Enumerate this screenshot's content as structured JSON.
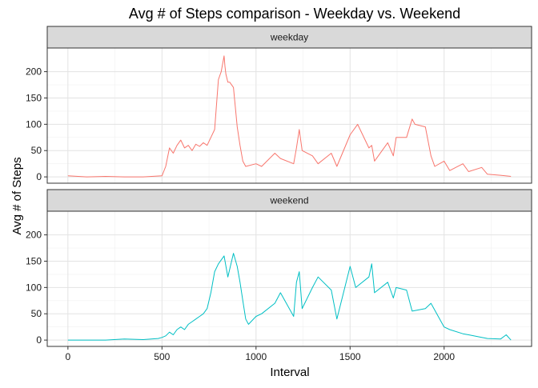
{
  "chart_data": {
    "type": "line",
    "title": "Avg # of Steps comparison - Weekday vs. Weekend",
    "xlabel": "Interval",
    "ylabel": "Avg # of Steps",
    "xlim": [
      -110,
      2465
    ],
    "ylim": [
      -12,
      245
    ],
    "x_ticks": [
      0,
      500,
      1000,
      1500,
      2000
    ],
    "y_ticks": [
      0,
      50,
      100,
      150,
      200
    ],
    "grid": true,
    "facet_layout": "stacked-vertical",
    "panels": [
      {
        "label": "weekday",
        "color": "#F8766D",
        "x": [
          0,
          100,
          200,
          300,
          400,
          500,
          520,
          540,
          560,
          580,
          600,
          620,
          640,
          660,
          680,
          700,
          720,
          740,
          760,
          780,
          800,
          815,
          830,
          835,
          840,
          850,
          860,
          880,
          900,
          915,
          930,
          945,
          1000,
          1030,
          1100,
          1130,
          1200,
          1215,
          1230,
          1245,
          1300,
          1330,
          1400,
          1430,
          1500,
          1540,
          1600,
          1615,
          1630,
          1700,
          1730,
          1745,
          1800,
          1830,
          1845,
          1900,
          1930,
          1950,
          2000,
          2030,
          2100,
          2130,
          2200,
          2230,
          2300,
          2355
        ],
        "y": [
          2,
          0,
          1,
          0,
          0,
          2,
          20,
          55,
          45,
          60,
          70,
          55,
          60,
          50,
          62,
          58,
          65,
          60,
          75,
          90,
          185,
          200,
          230,
          210,
          195,
          180,
          180,
          170,
          95,
          60,
          30,
          20,
          25,
          20,
          45,
          35,
          25,
          55,
          90,
          50,
          40,
          25,
          45,
          20,
          80,
          100,
          55,
          60,
          30,
          65,
          40,
          75,
          75,
          110,
          100,
          95,
          40,
          20,
          30,
          12,
          25,
          10,
          18,
          5,
          3,
          1
        ]
      },
      {
        "label": "weekend",
        "color": "#00BFC4",
        "x": [
          0,
          100,
          200,
          300,
          400,
          480,
          500,
          520,
          540,
          560,
          580,
          600,
          620,
          640,
          660,
          680,
          700,
          720,
          740,
          760,
          780,
          800,
          830,
          850,
          880,
          900,
          915,
          930,
          945,
          960,
          1000,
          1030,
          1100,
          1130,
          1200,
          1215,
          1230,
          1245,
          1300,
          1330,
          1400,
          1430,
          1500,
          1530,
          1600,
          1615,
          1630,
          1700,
          1730,
          1745,
          1800,
          1830,
          1900,
          1930,
          2000,
          2030,
          2100,
          2130,
          2200,
          2230,
          2300,
          2330,
          2355
        ],
        "y": [
          0,
          0,
          0,
          2,
          1,
          3,
          5,
          8,
          15,
          10,
          20,
          25,
          20,
          30,
          35,
          40,
          45,
          50,
          60,
          90,
          130,
          145,
          160,
          120,
          165,
          140,
          110,
          75,
          40,
          30,
          45,
          50,
          70,
          90,
          45,
          110,
          130,
          60,
          100,
          120,
          95,
          40,
          140,
          100,
          120,
          145,
          90,
          110,
          80,
          100,
          95,
          55,
          60,
          70,
          25,
          20,
          12,
          10,
          5,
          3,
          2,
          10,
          0
        ]
      }
    ]
  }
}
